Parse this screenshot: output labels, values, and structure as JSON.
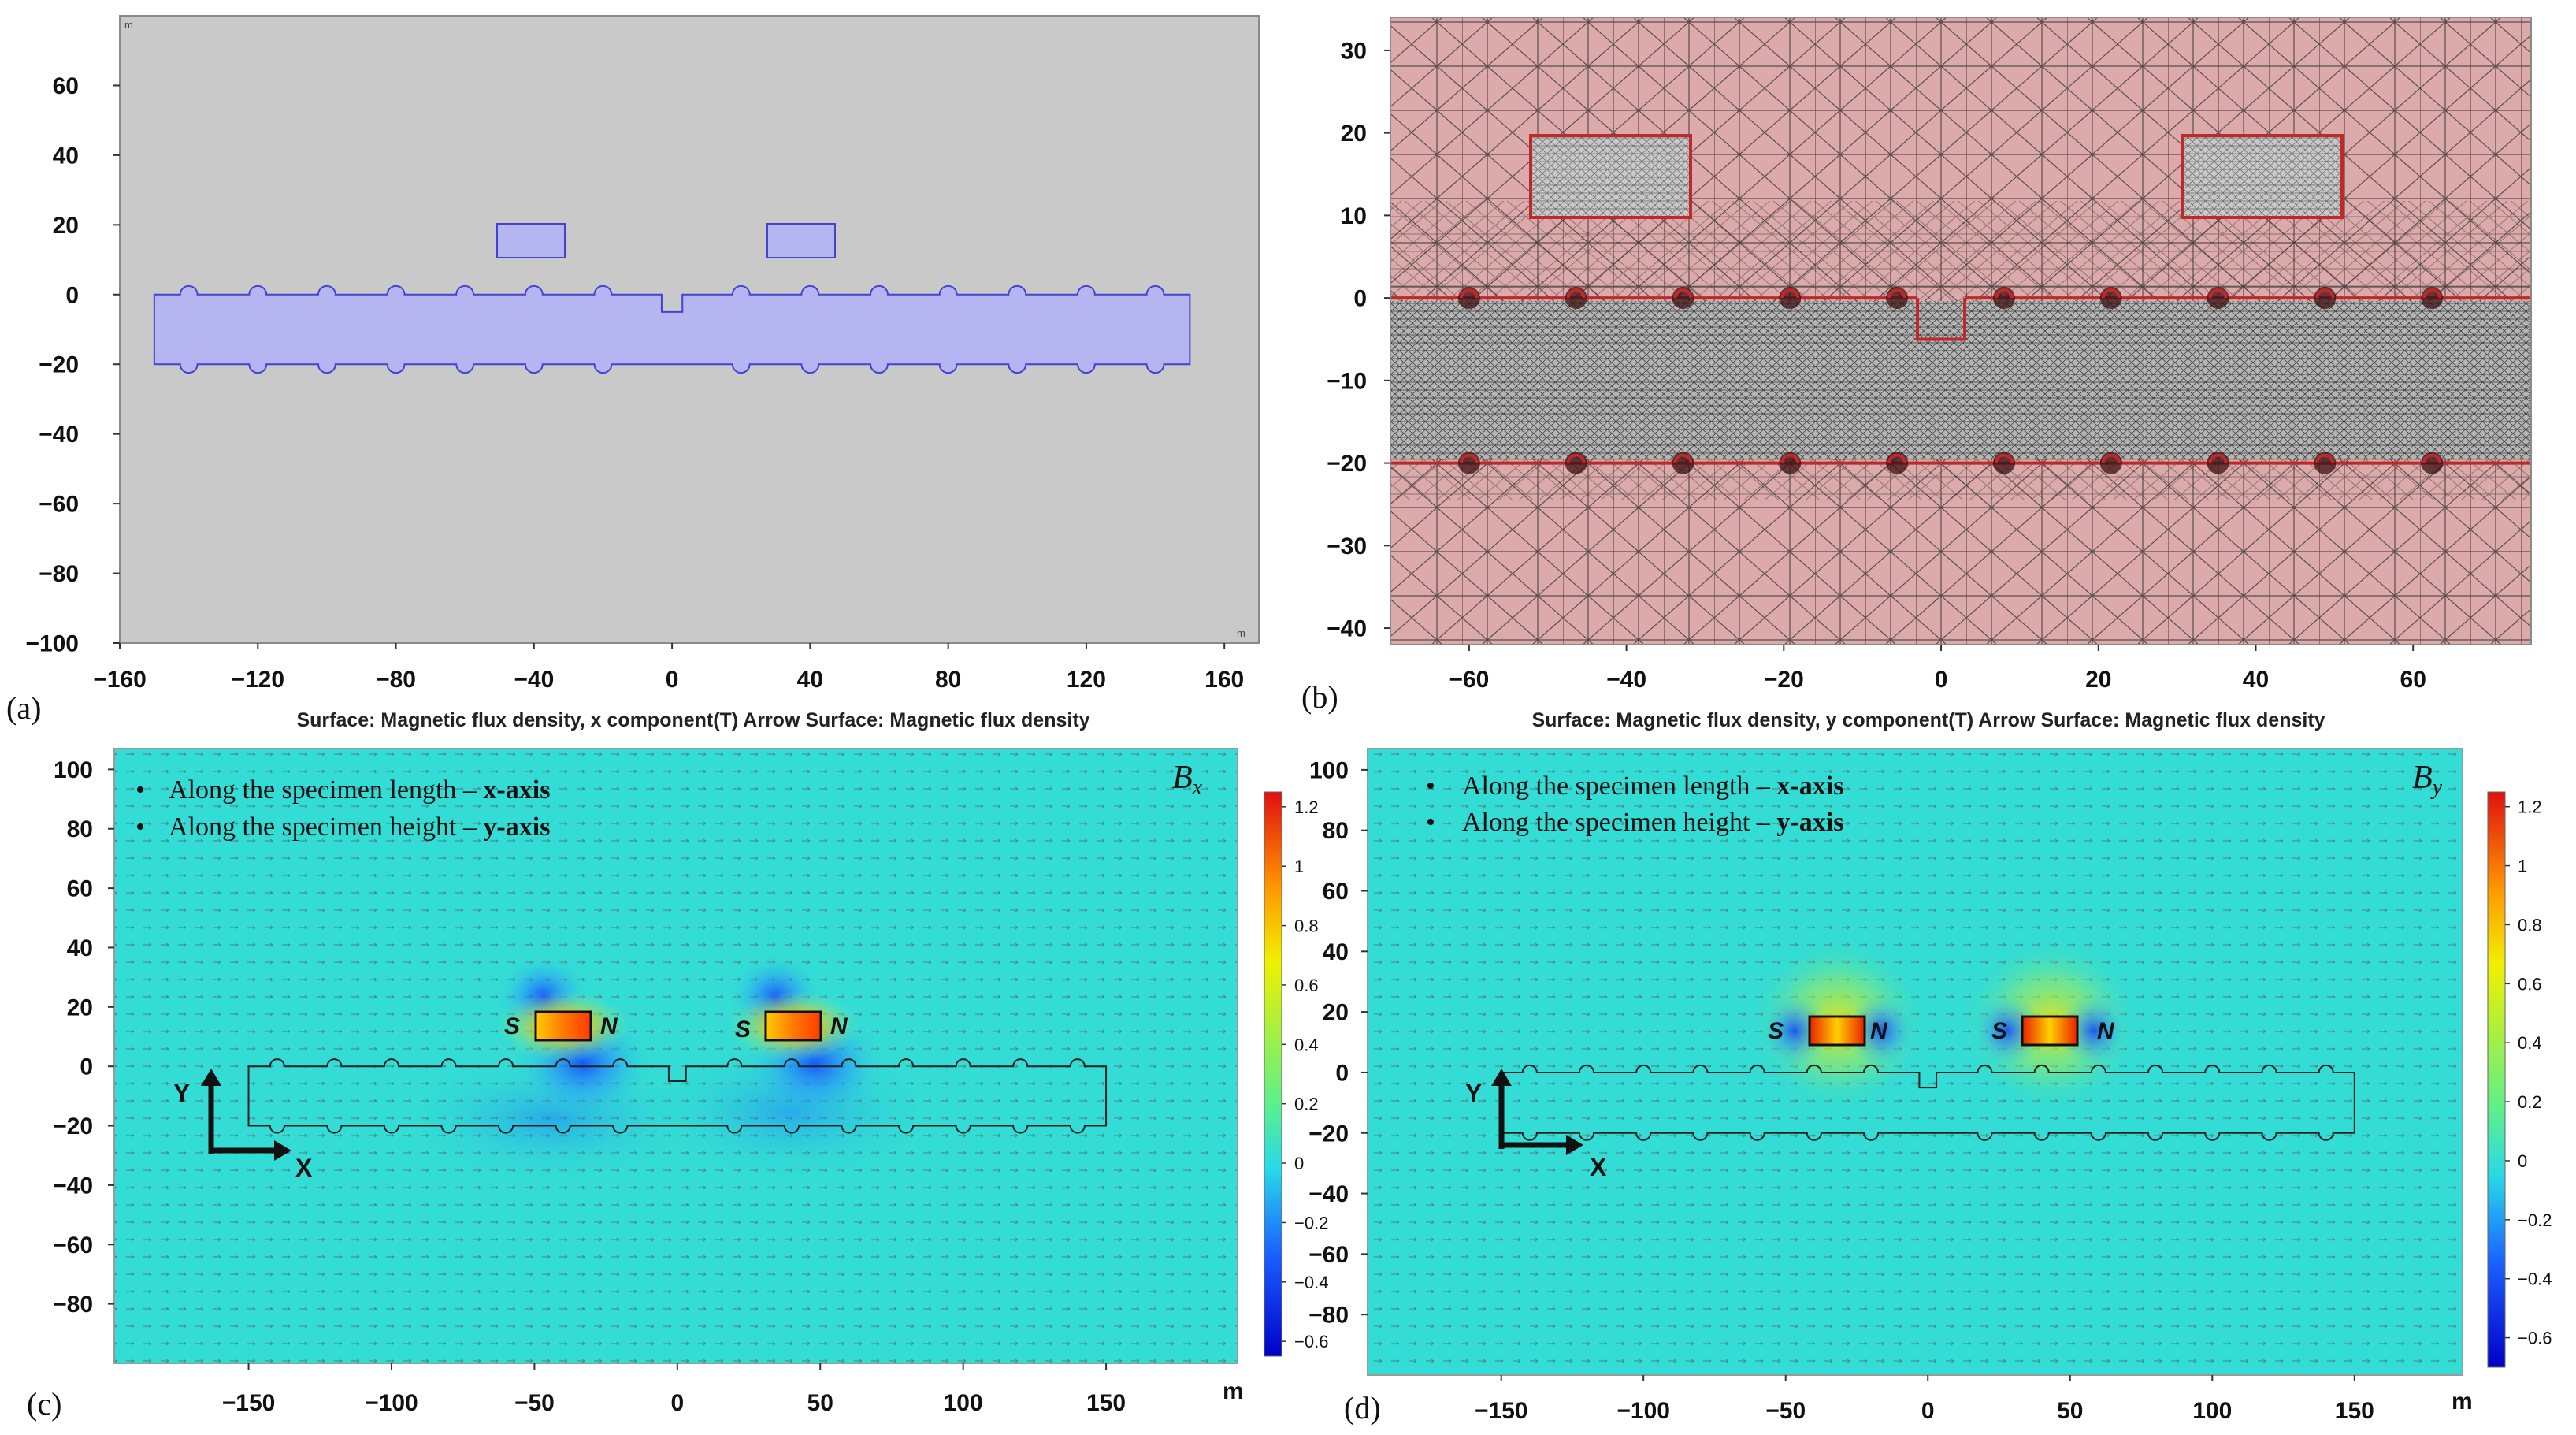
{
  "panels": {
    "a": {
      "label": "(a)",
      "x_ticks": [
        "−160",
        "−120",
        "−80",
        "−40",
        "0",
        "40",
        "80",
        "120",
        "160"
      ],
      "y_ticks": [
        "60",
        "40",
        "20",
        "0",
        "−20",
        "−40",
        "−60",
        "−80",
        "−100"
      ],
      "unit_mark": "m",
      "xlim": [
        -160,
        170
      ],
      "ylim": [
        -100,
        80
      ],
      "colors": {
        "background": "#c9c9c9",
        "geometry_fill": "#b5b5f2",
        "geometry_stroke": "#4242d6"
      }
    },
    "b": {
      "label": "(b)",
      "x_ticks": [
        "−60",
        "−40",
        "−20",
        "0",
        "20",
        "40",
        "60"
      ],
      "y_ticks": [
        "30",
        "20",
        "10",
        "0",
        "−10",
        "−20",
        "−30",
        "−40"
      ],
      "xlim": [
        -70,
        75
      ],
      "ylim": [
        -42,
        34
      ],
      "colors": {
        "air_mesh": "#dcaaaa",
        "specimen_mesh": "#b8b8b8",
        "boundary": "#c0282c"
      }
    },
    "c": {
      "label": "(c)",
      "title": "Surface: Magnetic flux density, x component(T) Arrow Surface: Magnetic flux density",
      "bullets": [
        {
          "normal": "Along the specimen length – ",
          "bold": "x-axis"
        },
        {
          "normal": "Along the specimen height – ",
          "bold": "y-axis"
        }
      ],
      "field_symbol": "B",
      "field_sub": "x",
      "x_ticks": [
        "−150",
        "−100",
        "−50",
        "0",
        "50",
        "100",
        "150"
      ],
      "x_unit": "m",
      "y_ticks": [
        "100",
        "80",
        "60",
        "40",
        "20",
        "0",
        "−20",
        "−40",
        "−60",
        "−80"
      ],
      "xlim": [
        -197,
        196
      ],
      "ylim": [
        -100,
        107
      ],
      "colorbar_ticks": [
        "1.2",
        "1",
        "0.8",
        "0.6",
        "0.4",
        "0.2",
        "0",
        "−0.2",
        "−0.4",
        "−0.6"
      ],
      "colorbar_range": [
        -0.65,
        1.25
      ],
      "pole_labels": [
        "S",
        "N",
        "S",
        "N"
      ],
      "axis_y": "Y",
      "axis_x": "X"
    },
    "d": {
      "label": "(d)",
      "title": "Surface: Magnetic flux density, y component(T) Arrow Surface: Magnetic flux density",
      "bullets": [
        {
          "normal": "Along the specimen length – ",
          "bold": "x-axis"
        },
        {
          "normal": "Along the specimen height – ",
          "bold": "y-axis"
        }
      ],
      "field_symbol": "B",
      "field_sub": "y",
      "x_ticks": [
        "−150",
        "−100",
        "−50",
        "0",
        "50",
        "100",
        "150"
      ],
      "x_unit": "m",
      "y_ticks": [
        "100",
        "80",
        "60",
        "40",
        "20",
        "0",
        "−20",
        "−40",
        "−60",
        "−80"
      ],
      "xlim": [
        -197,
        188
      ],
      "ylim": [
        -100,
        107
      ],
      "colorbar_ticks": [
        "1.2",
        "1",
        "0.8",
        "0.6",
        "0.4",
        "0.2",
        "0",
        "−0.2",
        "−0.4",
        "−0.6"
      ],
      "colorbar_range": [
        -0.7,
        1.25
      ],
      "pole_labels": [
        "S",
        "N",
        "S",
        "N"
      ],
      "axis_y": "Y",
      "axis_x": "X"
    }
  },
  "colors": {
    "field_bg": "#33dcd4",
    "arrow": "#3d6e6b",
    "frame": "#9a9a9a"
  }
}
